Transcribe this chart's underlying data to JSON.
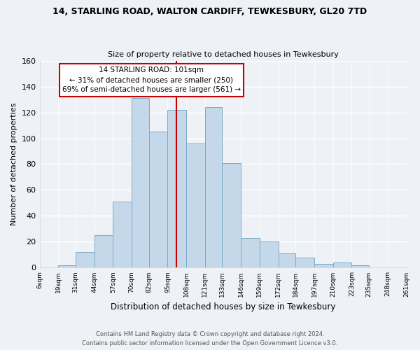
{
  "title": "14, STARLING ROAD, WALTON CARDIFF, TEWKESBURY, GL20 7TD",
  "subtitle": "Size of property relative to detached houses in Tewkesbury",
  "xlabel": "Distribution of detached houses by size in Tewkesbury",
  "ylabel": "Number of detached properties",
  "bar_color": "#c5d8ea",
  "bar_edge_color": "#7aaac8",
  "background_color": "#eef2f7",
  "grid_color": "#ffffff",
  "bin_edges": [
    6,
    19,
    31,
    44,
    57,
    70,
    82,
    95,
    108,
    121,
    133,
    146,
    159,
    172,
    184,
    197,
    210,
    223,
    235,
    248,
    261
  ],
  "bin_labels": [
    "6sqm",
    "19sqm",
    "31sqm",
    "44sqm",
    "57sqm",
    "70sqm",
    "82sqm",
    "95sqm",
    "108sqm",
    "121sqm",
    "133sqm",
    "146sqm",
    "159sqm",
    "172sqm",
    "184sqm",
    "197sqm",
    "210sqm",
    "223sqm",
    "235sqm",
    "248sqm",
    "261sqm"
  ],
  "bar_heights": [
    0,
    2,
    12,
    25,
    51,
    131,
    105,
    122,
    96,
    124,
    81,
    23,
    20,
    11,
    8,
    3,
    4,
    2,
    0,
    0
  ],
  "ylim": [
    0,
    160
  ],
  "yticks": [
    0,
    20,
    40,
    60,
    80,
    100,
    120,
    140,
    160
  ],
  "property_line_x": 101,
  "annotation_title": "14 STARLING ROAD: 101sqm",
  "annotation_line1": "← 31% of detached houses are smaller (250)",
  "annotation_line2": "69% of semi-detached houses are larger (561) →",
  "annotation_box_color": "#ffffff",
  "annotation_box_edge": "#cc0000",
  "red_line_color": "#cc0000",
  "footer_line1": "Contains HM Land Registry data © Crown copyright and database right 2024.",
  "footer_line2": "Contains public sector information licensed under the Open Government Licence v3.0."
}
